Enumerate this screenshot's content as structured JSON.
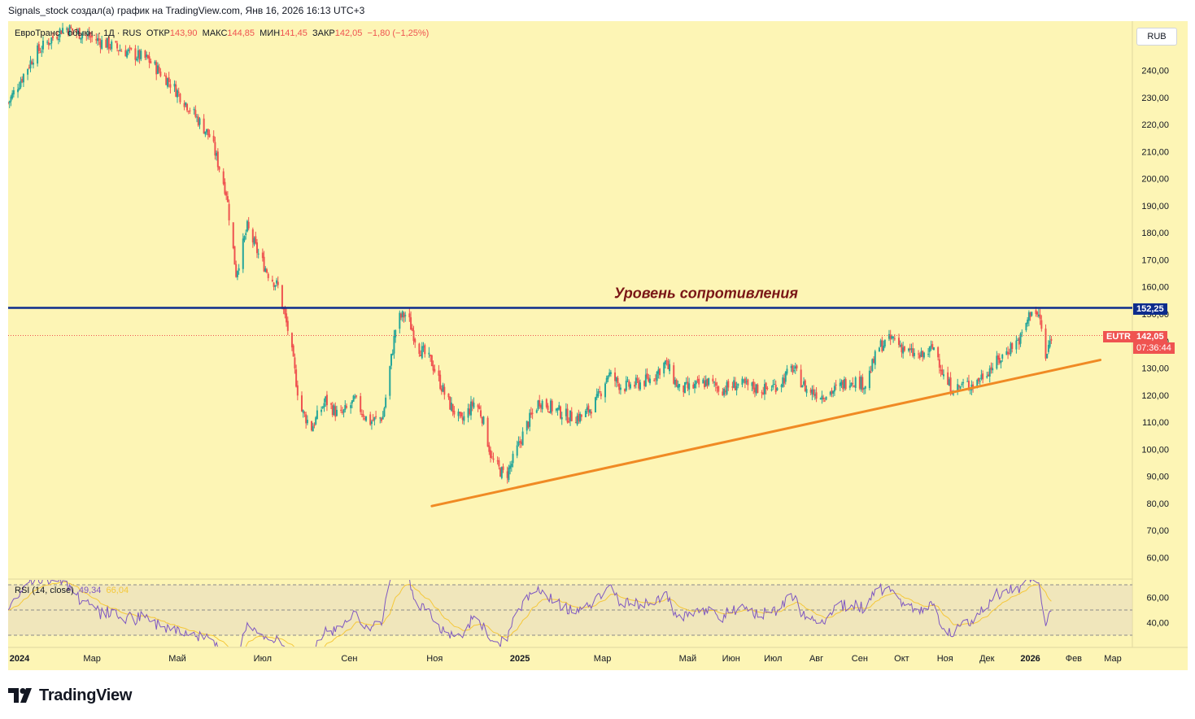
{
  "header": {
    "text": "Signals_stock создал(а) график на TradingView.com, Янв 16, 2026 16:13 UTC+3"
  },
  "legend": {
    "symbol": "ЕвроТранс · обыкн. · 1Д · RUS",
    "open_label": "ОТКР",
    "open": "143,90",
    "high_label": "МАКС",
    "high": "144,85",
    "low_label": "МИН",
    "low": "141,45",
    "close_label": "ЗАКР",
    "close": "142,05",
    "change": "−1,80 (−1,25%)"
  },
  "currency": "RUB",
  "rsi": {
    "label": "RSI (14, close)",
    "value": "49,34",
    "ma_value": "66,04"
  },
  "annotation": "Уровень сопротивления",
  "tags": {
    "resistance_price": "152,25",
    "symbol": "EUTR",
    "last_price": "142,05",
    "countdown": "07:36:44"
  },
  "brand": {
    "name": "TradingView",
    "logo_icon": "tradingview-logo-icon"
  },
  "colors": {
    "up": "#26a69a",
    "down": "#ef5350",
    "resistance": "#0d2c8c",
    "trend": "#f08a24",
    "rsi_line": "#7e57c2",
    "rsi_ma": "#f5c83a",
    "background": "#fdf5b5"
  },
  "chart_data": {
    "type": "candlestick",
    "timeframe": "1D",
    "price_axis": {
      "min": 50,
      "max": 250,
      "ticks": [
        "60,00",
        "70,00",
        "80,00",
        "90,00",
        "100,00",
        "110,00",
        "120,00",
        "130,00",
        "140,00",
        "150,00",
        "160,00",
        "170,00",
        "180,00",
        "190,00",
        "200,00",
        "210,00",
        "220,00",
        "230,00",
        "240,00"
      ]
    },
    "time_axis": [
      "2024",
      "Мар",
      "Май",
      "Июл",
      "Сен",
      "Ноя",
      "2025",
      "Мар",
      "Май",
      "Июн",
      "Июл",
      "Авг",
      "Сен",
      "Окт",
      "Ноя",
      "Дек",
      "2026",
      "Фев",
      "Мар"
    ],
    "close_path": [
      [
        "2024-01-01",
        228
      ],
      [
        "2024-01-20",
        246
      ],
      [
        "2024-02-10",
        256
      ],
      [
        "2024-03-01",
        252
      ],
      [
        "2024-03-20",
        248
      ],
      [
        "2024-04-10",
        244
      ],
      [
        "2024-04-25",
        236
      ],
      [
        "2024-05-10",
        226
      ],
      [
        "2024-05-25",
        215
      ],
      [
        "2024-06-05",
        195
      ],
      [
        "2024-06-12",
        165
      ],
      [
        "2024-06-20",
        182
      ],
      [
        "2024-06-28",
        172
      ],
      [
        "2024-07-05",
        165
      ],
      [
        "2024-07-12",
        160
      ],
      [
        "2024-07-20",
        142
      ],
      [
        "2024-07-28",
        115
      ],
      [
        "2024-08-05",
        108
      ],
      [
        "2024-08-15",
        118
      ],
      [
        "2024-08-25",
        112
      ],
      [
        "2024-09-05",
        118
      ],
      [
        "2024-09-15",
        110
      ],
      [
        "2024-09-25",
        112
      ],
      [
        "2024-10-05",
        148
      ],
      [
        "2024-10-12",
        150
      ],
      [
        "2024-10-20",
        138
      ],
      [
        "2024-10-30",
        132
      ],
      [
        "2024-11-10",
        118
      ],
      [
        "2024-11-20",
        110
      ],
      [
        "2024-11-30",
        118
      ],
      [
        "2024-12-05",
        112
      ],
      [
        "2024-12-12",
        96
      ],
      [
        "2024-12-18",
        92
      ],
      [
        "2024-12-22",
        90
      ],
      [
        "2024-12-27",
        96
      ],
      [
        "2025-01-05",
        108
      ],
      [
        "2025-01-15",
        118
      ],
      [
        "2025-01-25",
        115
      ],
      [
        "2025-02-05",
        112
      ],
      [
        "2025-02-15",
        112
      ],
      [
        "2025-02-25",
        118
      ],
      [
        "2025-03-05",
        128
      ],
      [
        "2025-03-15",
        123
      ],
      [
        "2025-03-25",
        124
      ],
      [
        "2025-04-05",
        126
      ],
      [
        "2025-04-15",
        132
      ],
      [
        "2025-04-25",
        122
      ],
      [
        "2025-05-05",
        123
      ],
      [
        "2025-05-15",
        125
      ],
      [
        "2025-05-25",
        122
      ],
      [
        "2025-06-05",
        124
      ],
      [
        "2025-06-15",
        123
      ],
      [
        "2025-06-25",
        122
      ],
      [
        "2025-07-05",
        124
      ],
      [
        "2025-07-15",
        130
      ],
      [
        "2025-07-25",
        122
      ],
      [
        "2025-08-05",
        120
      ],
      [
        "2025-08-15",
        122
      ],
      [
        "2025-08-25",
        126
      ],
      [
        "2025-09-05",
        124
      ],
      [
        "2025-09-15",
        138
      ],
      [
        "2025-09-25",
        141
      ],
      [
        "2025-10-05",
        136
      ],
      [
        "2025-10-15",
        134
      ],
      [
        "2025-10-25",
        138
      ],
      [
        "2025-11-01",
        125
      ],
      [
        "2025-11-08",
        122
      ],
      [
        "2025-11-15",
        124
      ],
      [
        "2025-11-22",
        124
      ],
      [
        "2025-12-01",
        129
      ],
      [
        "2025-12-10",
        133
      ],
      [
        "2025-12-18",
        138
      ],
      [
        "2025-12-25",
        141
      ],
      [
        "2026-01-02",
        152
      ],
      [
        "2026-01-08",
        148
      ],
      [
        "2026-01-12",
        133
      ],
      [
        "2026-01-16",
        142.05
      ]
    ],
    "resistance_level": 152.25,
    "trend_line": {
      "start": [
        "2024-10-30",
        79
      ],
      "end": [
        "2026-02-20",
        133
      ]
    },
    "rsi_period": 14,
    "rsi_levels": [
      30,
      50,
      70
    ],
    "rsi_ticks": [
      "40,00",
      "60,00"
    ]
  }
}
